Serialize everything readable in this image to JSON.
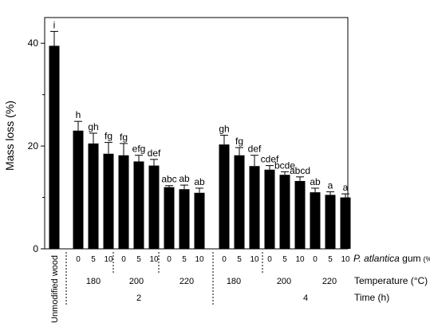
{
  "chart_data": {
    "type": "bar",
    "ylabel": "Mass loss (%)",
    "ylim": [
      0,
      45
    ],
    "yticks": [
      0,
      20,
      40
    ],
    "bar_color": "#000000",
    "categories": [
      {
        "group": "Unmodified wood",
        "value": 39.5,
        "error": 2.8,
        "letter": "i"
      },
      {
        "group": "2 h / 180 °C",
        "gum": "0",
        "value": 23.0,
        "error": 1.8,
        "letter": "h"
      },
      {
        "group": "2 h / 180 °C",
        "gum": "5",
        "value": 20.5,
        "error": 2.0,
        "letter": "gh"
      },
      {
        "group": "2 h / 180 °C",
        "gum": "10",
        "value": 18.5,
        "error": 2.2,
        "letter": "fg"
      },
      {
        "group": "2 h / 200 °C",
        "gum": "0",
        "value": 18.2,
        "error": 2.3,
        "letter": "fg"
      },
      {
        "group": "2 h / 200 °C",
        "gum": "5",
        "value": 17.0,
        "error": 1.2,
        "letter": "efg"
      },
      {
        "group": "2 h / 200 °C",
        "gum": "10",
        "value": 16.2,
        "error": 1.2,
        "letter": "def"
      },
      {
        "group": "2 h / 220 °C",
        "gum": "0",
        "value": 12.0,
        "error": 0.3,
        "letter": "abc"
      },
      {
        "group": "2 h / 220 °C",
        "gum": "5",
        "value": 11.6,
        "error": 0.8,
        "letter": "ab"
      },
      {
        "group": "2 h / 220 °C",
        "gum": "10",
        "value": 10.9,
        "error": 0.9,
        "letter": "ab"
      },
      {
        "group": "4 h / 180 °C",
        "gum": "0",
        "value": 20.3,
        "error": 1.8,
        "letter": "gh"
      },
      {
        "group": "4 h / 180 °C",
        "gum": "5",
        "value": 18.2,
        "error": 1.5,
        "letter": "fg"
      },
      {
        "group": "4 h / 180 °C",
        "gum": "10",
        "value": 16.1,
        "error": 2.1,
        "letter": "def"
      },
      {
        "group": "4 h / 200 °C",
        "gum": "0",
        "value": 15.4,
        "error": 0.8,
        "letter": "cdef"
      },
      {
        "group": "4 h / 200 °C",
        "gum": "5",
        "value": 14.4,
        "error": 0.6,
        "letter": "bcde"
      },
      {
        "group": "4 h / 200 °C",
        "gum": "10",
        "value": 13.2,
        "error": 0.8,
        "letter": "abcd"
      },
      {
        "group": "4 h / 220 °C",
        "gum": "0",
        "value": 11.0,
        "error": 0.8,
        "letter": "ab"
      },
      {
        "group": "4 h / 220 °C",
        "gum": "5",
        "value": 10.5,
        "error": 0.6,
        "letter": "a"
      },
      {
        "group": "4 h / 220 °C",
        "gum": "10",
        "value": 10.0,
        "error": 0.7,
        "letter": "a"
      }
    ],
    "control_label": "Unmodified wood",
    "gum_labels": [
      "0",
      "5",
      "10"
    ],
    "temperature_labels": [
      "180",
      "200",
      "220",
      "180",
      "200",
      "220"
    ],
    "time_labels": [
      "2",
      "4"
    ],
    "row_titles": {
      "gum_italic": "P. atlantica",
      "gum_rest": " gum",
      "gum_unit": "(%)",
      "temperature": "Temperature (°C)",
      "time": "Time (h)"
    }
  }
}
